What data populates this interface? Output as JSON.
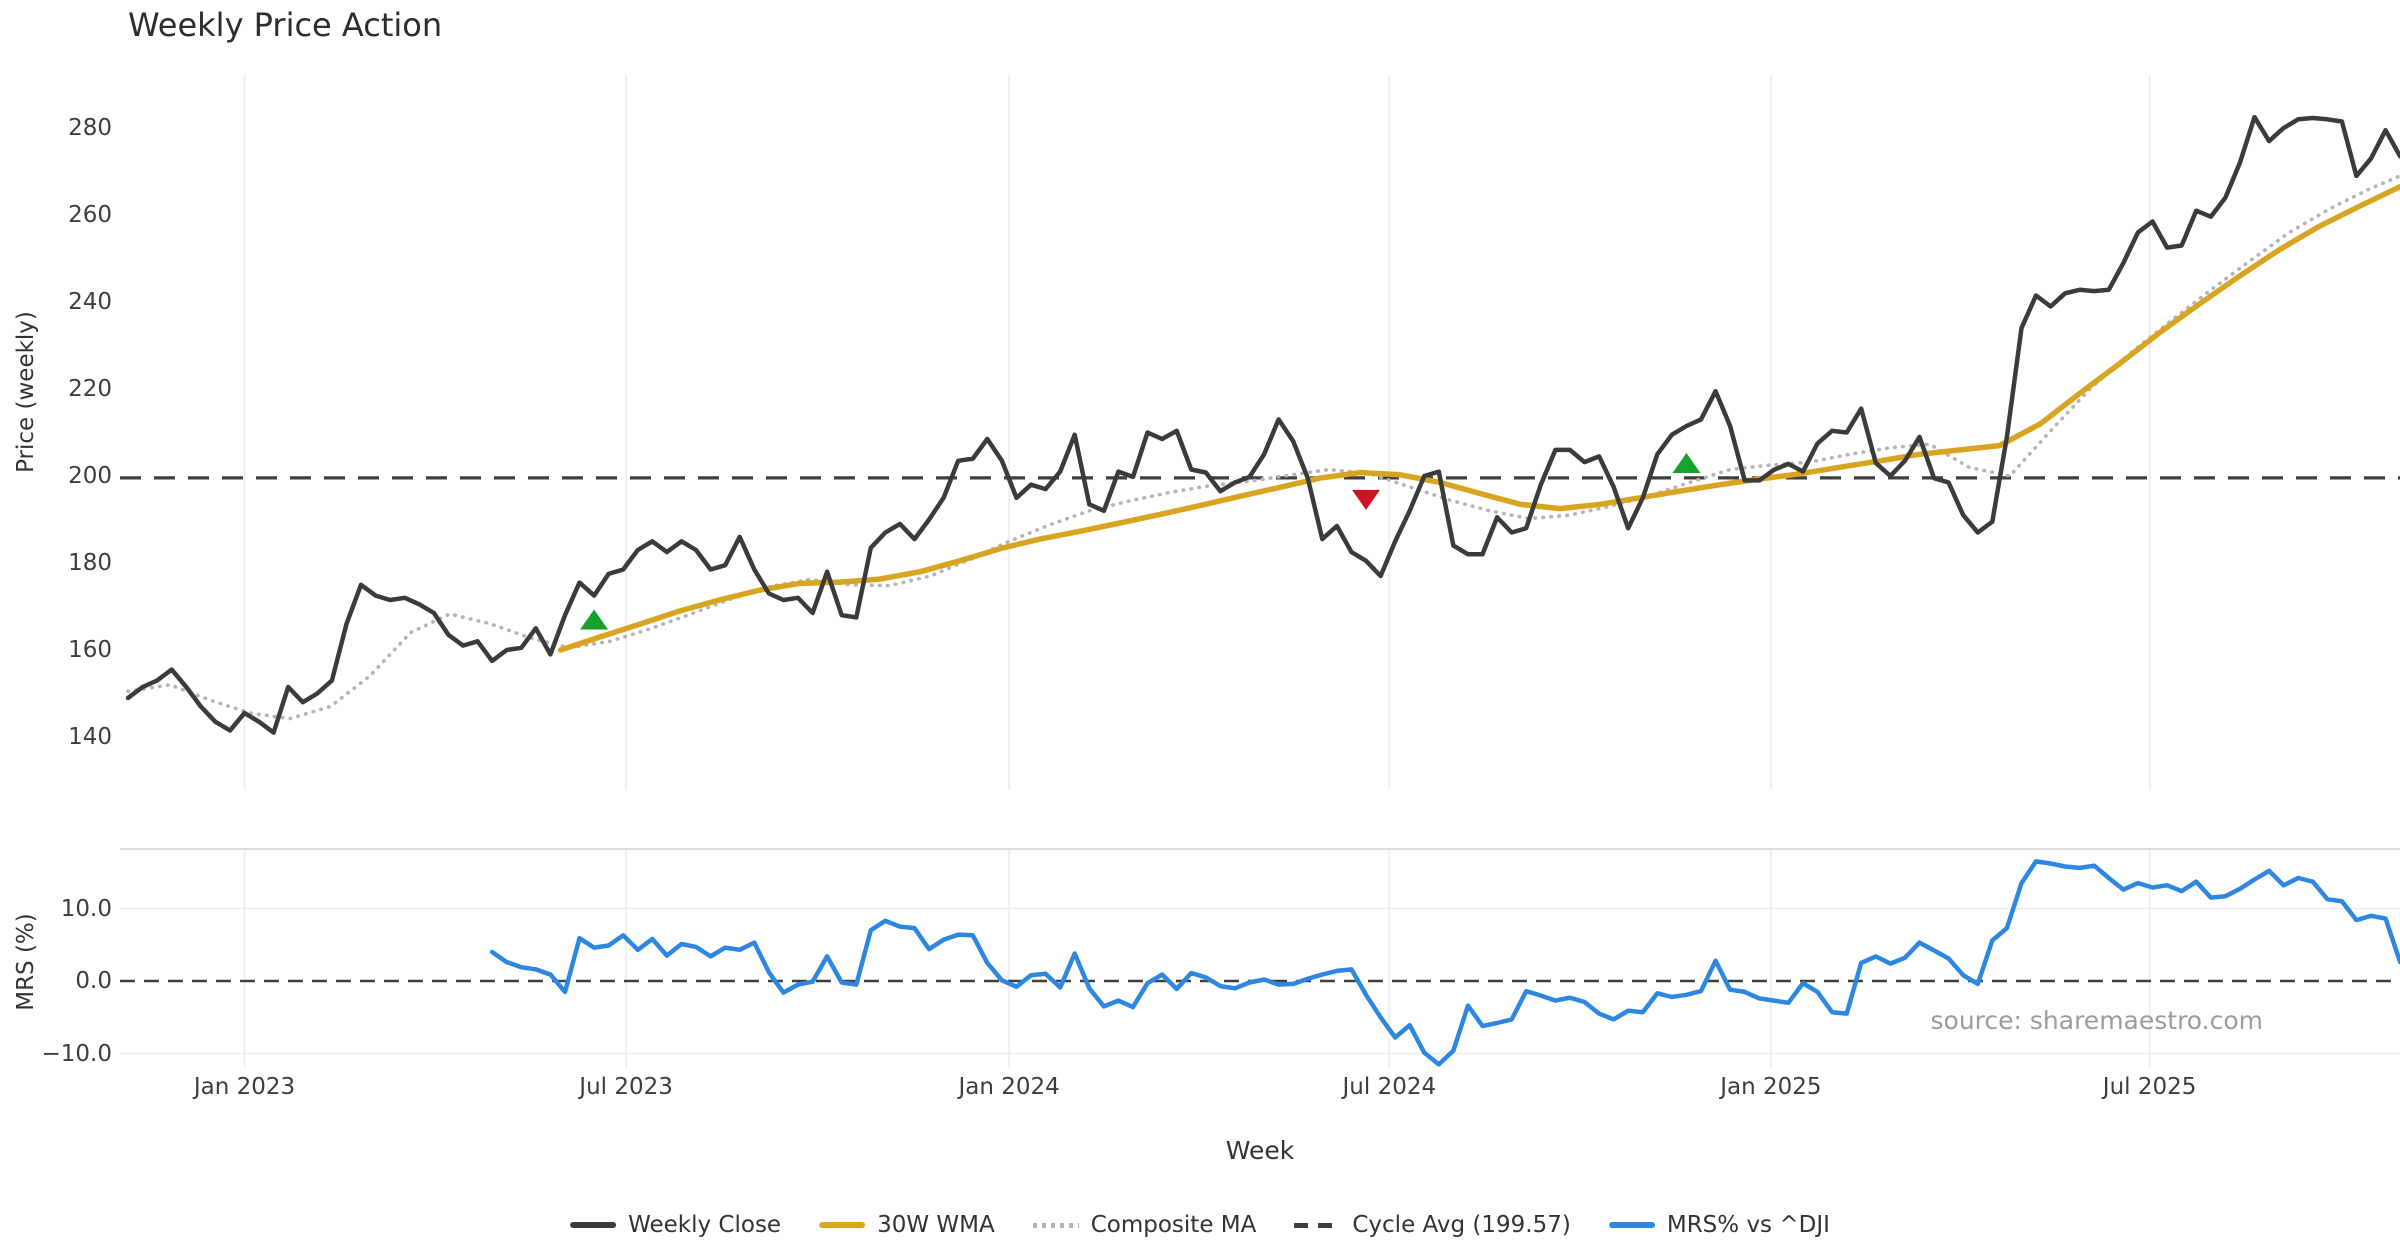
{
  "title": "Weekly Price Action",
  "source_note": "source: sharemaestro.com",
  "colors": {
    "weekly_close": "#3b3b3b",
    "wma30": "#d9a521",
    "composite_ma": "#b4b4b4",
    "cycle_avg": "#3f3f3f",
    "mrs": "#2d87e2",
    "buy_marker": "#17a22b",
    "sell_marker": "#cf1222",
    "gridline": "#ebebf0",
    "panel_hgrid": "#ededed",
    "panel_border": "#d8d8d8"
  },
  "legend": {
    "items": [
      {
        "label": "Weekly Close",
        "color": "#3b3b3b",
        "style": "solid"
      },
      {
        "label": "30W WMA",
        "color": "#d9a521",
        "style": "solid"
      },
      {
        "label": "Composite MA",
        "color": "#b4b4b4",
        "style": "dotted"
      },
      {
        "label": "Cycle Avg (199.57)",
        "color": "#3f3f3f",
        "style": "dashed"
      },
      {
        "label": "MRS% vs ^DJI",
        "color": "#2d87e2",
        "style": "solid"
      }
    ]
  },
  "chart_data": {
    "type": "line",
    "title": "Weekly Price Action",
    "xlabel": "Week",
    "x_unit": "weeks (weekly closes, late 2022 through late 2025)",
    "x_ticks": [
      {
        "label": "Jan 2023",
        "week": 8.0
      },
      {
        "label": "Jul 2023",
        "week": 34.2
      },
      {
        "label": "Jan 2024",
        "week": 60.5
      },
      {
        "label": "Jul 2024",
        "week": 86.6
      },
      {
        "label": "Jan 2025",
        "week": 112.8
      },
      {
        "label": "Jul 2025",
        "week": 138.8
      }
    ],
    "panels": [
      {
        "name": "price",
        "ylabel": "Price (weekly)",
        "ylim": [
          128,
          292
        ],
        "yticks": [
          {
            "label": "280",
            "value": 280
          },
          {
            "label": "260",
            "value": 260
          },
          {
            "label": "240",
            "value": 240
          },
          {
            "label": "220",
            "value": 220
          },
          {
            "label": "200",
            "value": 200
          },
          {
            "label": "180",
            "value": 180
          },
          {
            "label": "160",
            "value": 160
          },
          {
            "label": "140",
            "value": 140
          }
        ],
        "series": [
          {
            "name": "Weekly Close",
            "color": "#3b3b3b",
            "style": "solid",
            "start_week": 0,
            "step_weeks": 1,
            "values": [
              149,
              151.5,
              153,
              155.5,
              151.5,
              147,
              143.5,
              141.5,
              145.5,
              143.5,
              141,
              151.5,
              148,
              150,
              153,
              166,
              175,
              172.5,
              171.5,
              172,
              170.5,
              168.5,
              163.5,
              161,
              162,
              157.5,
              160,
              160.5,
              165,
              159,
              168,
              175.5,
              172.5,
              177.5,
              178.5,
              183,
              185,
              182.5,
              185,
              183,
              178.5,
              179.5,
              186,
              178.5,
              173,
              171.5,
              172,
              168.5,
              178,
              168,
              167.5,
              183.5,
              187,
              189,
              185.5,
              190,
              195,
              203.5,
              204,
              208.5,
              203.5,
              195,
              198,
              197,
              201,
              209.5,
              193.5,
              192,
              201,
              199.8,
              210,
              208.5,
              210.4,
              201.5,
              200.8,
              196.5,
              198.5,
              199.8,
              205,
              213,
              208,
              199.5,
              185.5,
              188.5,
              182.5,
              180.5,
              177,
              185,
              192,
              200,
              201,
              184,
              182,
              182,
              190.5,
              187,
              188,
              198,
              206,
              206,
              203.2,
              204.5,
              197.5,
              188,
              195,
              205,
              209.5,
              211.5,
              213,
              219.5,
              211.5,
              199,
              199,
              201.4,
              202.8,
              201,
              207.5,
              210.4,
              210,
              215.5,
              203,
              200,
              203.5,
              209,
              199.5,
              198.5,
              191,
              187,
              189.5,
              209,
              234,
              241.5,
              239,
              242,
              242.8,
              242.5,
              242.8,
              249,
              256,
              258.5,
              252.5,
              253,
              261,
              259.6,
              264,
              272,
              282.5,
              277,
              280,
              282,
              282.3,
              282,
              281.5,
              269,
              273,
              279.5,
              273.5
            ]
          },
          {
            "name": "30W WMA",
            "color": "#d9a521",
            "style": "solid",
            "points": [
              [
                29.7,
                160
              ],
              [
                32.4,
                163
              ],
              [
                35.2,
                166
              ],
              [
                37.9,
                169
              ],
              [
                40.6,
                171.5
              ],
              [
                43.4,
                173.8
              ],
              [
                46.1,
                175.3
              ],
              [
                48.9,
                175.6
              ],
              [
                51.6,
                176.3
              ],
              [
                54.4,
                178
              ],
              [
                57.1,
                180.5
              ],
              [
                59.9,
                183.3
              ],
              [
                62.6,
                185.5
              ],
              [
                65.4,
                187.3
              ],
              [
                68.1,
                189.2
              ],
              [
                70.9,
                191.2
              ],
              [
                73.6,
                193.2
              ],
              [
                76.3,
                195.3
              ],
              [
                79.1,
                197.4
              ],
              [
                81.8,
                199.5
              ],
              [
                84.6,
                200.8
              ],
              [
                87.3,
                200.3
              ],
              [
                90.1,
                198.5
              ],
              [
                92.8,
                196
              ],
              [
                95.6,
                193.5
              ],
              [
                98.3,
                192.5
              ],
              [
                101.1,
                193.5
              ],
              [
                103.8,
                195
              ],
              [
                106.5,
                196.5
              ],
              [
                109.3,
                198
              ],
              [
                112,
                199.3
              ],
              [
                114.8,
                200.5
              ],
              [
                117.5,
                202
              ],
              [
                120.3,
                203.5
              ],
              [
                123,
                205
              ],
              [
                125.8,
                206
              ],
              [
                128.5,
                207
              ],
              [
                131.3,
                212
              ],
              [
                134,
                219
              ],
              [
                136.8,
                226
              ],
              [
                139.5,
                233
              ],
              [
                142.2,
                239.5
              ],
              [
                145,
                246
              ],
              [
                147.7,
                252
              ],
              [
                150.5,
                257.5
              ],
              [
                153.2,
                262
              ],
              [
                156,
                266.5
              ]
            ]
          },
          {
            "name": "Composite MA",
            "color": "#b4b4b4",
            "style": "dotted",
            "points": [
              [
                0,
                150.5
              ],
              [
                2.9,
                152
              ],
              [
                5.6,
                148.5
              ],
              [
                8.4,
                145.5
              ],
              [
                11.1,
                144.2
              ],
              [
                13.9,
                147
              ],
              [
                16.6,
                154
              ],
              [
                19.4,
                164
              ],
              [
                22.1,
                168.3
              ],
              [
                24.9,
                166
              ],
              [
                27.6,
                162.8
              ],
              [
                30.3,
                160.5
              ],
              [
                33.1,
                162
              ],
              [
                35.8,
                164.8
              ],
              [
                38.6,
                168.2
              ],
              [
                41.3,
                171.6
              ],
              [
                44.1,
                174.6
              ],
              [
                46.8,
                176.2
              ],
              [
                49.6,
                175
              ],
              [
                52.3,
                174.8
              ],
              [
                55.1,
                177
              ],
              [
                57.8,
                180.8
              ],
              [
                60.5,
                185
              ],
              [
                63.3,
                188.8
              ],
              [
                66,
                192
              ],
              [
                68.8,
                194.3
              ],
              [
                71.5,
                196.2
              ],
              [
                74.3,
                197.8
              ],
              [
                77,
                198.8
              ],
              [
                79.8,
                200.2
              ],
              [
                82.5,
                201.5
              ],
              [
                85.3,
                200.5
              ],
              [
                88,
                197.5
              ],
              [
                90.7,
                194.5
              ],
              [
                93.5,
                192
              ],
              [
                96.2,
                190.2
              ],
              [
                99,
                191
              ],
              [
                101.7,
                193
              ],
              [
                104.5,
                195.5
              ],
              [
                107.2,
                198.5
              ],
              [
                110,
                201.5
              ],
              [
                112.7,
                202.5
              ],
              [
                115.5,
                203.2
              ],
              [
                118.2,
                205
              ],
              [
                121,
                206.5
              ],
              [
                123.7,
                207.3
              ],
              [
                126.4,
                202
              ],
              [
                129.2,
                200
              ],
              [
                131.9,
                210
              ],
              [
                134.7,
                220
              ],
              [
                137.4,
                228
              ],
              [
                140.2,
                235.5
              ],
              [
                142.9,
                242.5
              ],
              [
                145.7,
                249.5
              ],
              [
                148.4,
                256
              ],
              [
                151.2,
                261.5
              ],
              [
                153.9,
                266
              ],
              [
                156,
                269
              ]
            ]
          },
          {
            "name": "Cycle Avg",
            "color": "#3f3f3f",
            "style": "dashed",
            "constant": 199.57
          }
        ],
        "markers": [
          {
            "type": "buy",
            "week": 32,
            "price": 167,
            "color": "#17a22b"
          },
          {
            "type": "sell",
            "week": 85,
            "price": 194.5,
            "color": "#cf1222"
          },
          {
            "type": "buy",
            "week": 107,
            "price": 203,
            "color": "#17a22b"
          }
        ]
      },
      {
        "name": "mrs",
        "ylabel": "MRS (%)",
        "ylim": [
          -12,
          18.2
        ],
        "zero_line": true,
        "yticks": [
          {
            "label": "10.0",
            "value": 10
          },
          {
            "label": "0.0",
            "value": 0
          },
          {
            "label": "−10.0",
            "value": -10
          }
        ],
        "series": [
          {
            "name": "MRS% vs ^DJI",
            "color": "#2d87e2",
            "style": "solid",
            "start_week": 25,
            "step_weeks": 1,
            "values": [
              4,
              2.6,
              1.9,
              1.6,
              0.9,
              -1.5,
              5.9,
              4.6,
              4.9,
              6.3,
              4.3,
              5.8,
              3.5,
              5.1,
              4.7,
              3.4,
              4.6,
              4.3,
              5.3,
              1.2,
              -1.6,
              -0.5,
              -0.1,
              3.4,
              -0.2,
              -0.5,
              7,
              8.3,
              7.5,
              7.3,
              4.4,
              5.7,
              6.4,
              6.3,
              2.5,
              0.1,
              -0.8,
              0.8,
              1,
              -0.9,
              3.8,
              -1,
              -3.5,
              -2.7,
              -3.6,
              -0.3,
              0.9,
              -1.1,
              1.1,
              0.5,
              -0.7,
              -1,
              -0.2,
              0.2,
              -0.5,
              -0.4,
              0.3,
              0.9,
              1.4,
              1.6,
              -1.9,
              -5,
              -7.8,
              -6.1,
              -9.9,
              -11.5,
              -9.6,
              -3.4,
              -6.2,
              -5.8,
              -5.3,
              -1.4,
              -2,
              -2.7,
              -2.3,
              -2.9,
              -4.5,
              -5.3,
              -4.1,
              -4.3,
              -1.7,
              -2.2,
              -1.9,
              -1.4,
              2.8,
              -1.2,
              -1.5,
              -2.4,
              -2.7,
              -3,
              -0.3,
              -1.5,
              -4.3,
              -4.5,
              2.5,
              3.4,
              2.4,
              3.2,
              5.3,
              4.2,
              3.1,
              0.8,
              -0.4,
              5.6,
              7.3,
              13.5,
              16.5,
              16.2,
              15.8,
              15.6,
              15.9,
              14.2,
              12.6,
              13.5,
              12.9,
              13.2,
              12.4,
              13.7,
              11.5,
              11.7,
              12.7,
              14,
              15.2,
              13.2,
              14.2,
              13.7,
              11.3,
              11,
              8.4,
              9,
              8.6,
              2.6
            ]
          }
        ]
      }
    ]
  }
}
